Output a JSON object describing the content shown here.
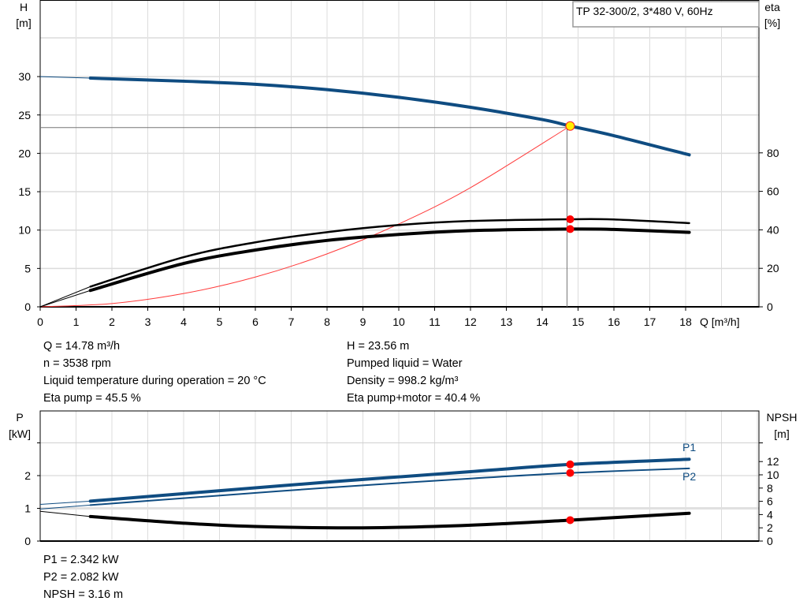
{
  "chart_data": [
    {
      "type": "line",
      "title": "TP 32-300/2, 3*480 V, 60Hz",
      "xlabel": "Q [m³/h]",
      "ylabel": "H\n[m]",
      "ylabel_left": [
        "H",
        "[m]"
      ],
      "ylabel_right": [
        "eta",
        "[%]"
      ],
      "xlim": [
        0,
        20
      ],
      "ylim_left": [
        0,
        40
      ],
      "ylim_right": [
        0,
        160
      ],
      "x_ticks": [
        0,
        1,
        2,
        3,
        4,
        5,
        6,
        7,
        8,
        9,
        10,
        11,
        12,
        13,
        14,
        15,
        16,
        17,
        18
      ],
      "y_ticks_left": [
        0,
        5,
        10,
        15,
        20,
        25,
        30
      ],
      "y_ticks_right": [
        0,
        20,
        40,
        60,
        80
      ],
      "grid": true,
      "legend": "top-right",
      "series": [
        {
          "id": "H",
          "axis": "left",
          "color": "#0f4c81",
          "x": [
            0,
            1.4,
            4,
            6,
            8,
            10,
            12,
            14,
            14.78,
            16,
            18.1
          ],
          "y": [
            30,
            29.8,
            29.4,
            29.0,
            28.3,
            27.3,
            26.0,
            24.4,
            23.56,
            22.3,
            19.8
          ]
        },
        {
          "id": "eta_pump",
          "axis": "right",
          "color": "#000000",
          "x": [
            0,
            1.4,
            4,
            6,
            8,
            10,
            12,
            14.78,
            16,
            18.1
          ],
          "y": [
            0,
            10.5,
            25.8,
            33.5,
            38.8,
            42.5,
            44.6,
            45.5,
            45.4,
            43.5
          ]
        },
        {
          "id": "eta_pump_motor",
          "axis": "right",
          "color": "#000000",
          "x": [
            0,
            1.4,
            4,
            6,
            8,
            10,
            12,
            14.78,
            16,
            18.1
          ],
          "y": [
            0,
            8.5,
            22.5,
            29.5,
            34.5,
            37.6,
            39.6,
            40.4,
            40.2,
            38.7
          ]
        },
        {
          "id": "system_curve",
          "axis": "left",
          "color": "#ff3b3b",
          "x": [
            0,
            2,
            4,
            6,
            8,
            10,
            12,
            14.78
          ],
          "y": [
            0,
            0.43,
            1.73,
            3.88,
            6.9,
            10.79,
            15.53,
            23.56
          ]
        }
      ],
      "operating_point": {
        "Q": 14.78,
        "H": 23.56,
        "eta_pump": 45.5,
        "eta_pump_motor": 40.4
      }
    },
    {
      "type": "line",
      "xlim": [
        0,
        20
      ],
      "ylabel_left": [
        "P",
        "[kW]"
      ],
      "ylabel_right": [
        "NPSH",
        "[m]"
      ],
      "ylim_left": [
        0,
        4
      ],
      "ylim_right": [
        0,
        20
      ],
      "y_ticks_left": [
        0,
        1,
        2
      ],
      "y_ticks_right": [
        0,
        2,
        4,
        6,
        8,
        10,
        12
      ],
      "grid": true,
      "series": [
        {
          "name": "P1",
          "axis": "left",
          "color": "#0f4c81",
          "x": [
            0,
            1.4,
            4,
            8,
            12,
            14.78,
            18.1
          ],
          "y": [
            1.12,
            1.22,
            1.45,
            1.8,
            2.12,
            2.342,
            2.5
          ]
        },
        {
          "name": "P2",
          "axis": "left",
          "color": "#0f4c81",
          "x": [
            0,
            1.4,
            4,
            8,
            12,
            14.78,
            18.1
          ],
          "y": [
            0.98,
            1.1,
            1.31,
            1.63,
            1.91,
            2.082,
            2.22
          ]
        },
        {
          "id": "NPSH",
          "axis": "right",
          "color": "#000000",
          "x": [
            0,
            1.4,
            4,
            6,
            9,
            12,
            14.78,
            18.1
          ],
          "y": [
            4.5,
            3.7,
            2.7,
            2.2,
            2.0,
            2.4,
            3.16,
            4.2
          ]
        }
      ],
      "operating_point": {
        "Q": 14.78,
        "P1": 2.342,
        "P2": 2.082,
        "NPSH": 3.16
      }
    }
  ],
  "info_top": {
    "left": [
      "Q = 14.78 m³/h",
      "n = 3538 rpm",
      "Liquid temperature during operation = 20 °C",
      "Eta pump = 45.5 %"
    ],
    "right": [
      "H = 23.56 m",
      "Pumped liquid = Water",
      "Density = 998.2 kg/m³",
      "Eta pump+motor = 40.4 %"
    ]
  },
  "info_bottom": [
    "P1 = 2.342 kW",
    "P2 = 2.082 kW",
    "NPSH = 3.16 m"
  ]
}
